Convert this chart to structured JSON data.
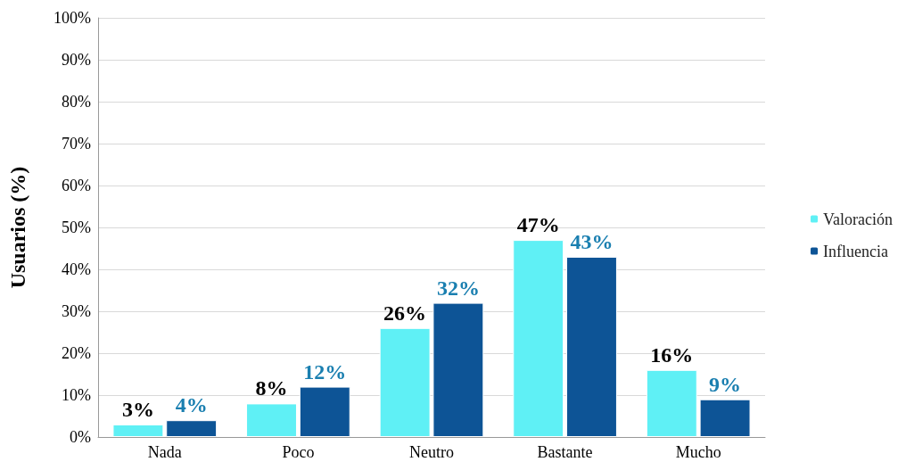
{
  "chart_data": {
    "type": "bar",
    "ylabel": "Usuarios (%)",
    "categories": [
      "Nada",
      "Poco",
      "Neutro",
      "Bastante",
      "Mucho"
    ],
    "series": [
      {
        "name": "Valoración",
        "color": "#5ff0f5",
        "values": [
          3,
          8,
          26,
          47,
          16
        ],
        "value_labels": [
          "3%",
          "8%",
          "26%",
          "47%",
          "16%"
        ]
      },
      {
        "name": "Influencia",
        "color": "#0d5496",
        "values": [
          4,
          12,
          32,
          43,
          9
        ],
        "value_labels": [
          "4%",
          "12%",
          "32%",
          "43%",
          "9%"
        ]
      }
    ],
    "ylim": [
      0,
      100
    ],
    "yticks": [
      {
        "value": 0,
        "label": "0%"
      },
      {
        "value": 10,
        "label": "10%"
      },
      {
        "value": 20,
        "label": "20%"
      },
      {
        "value": 30,
        "label": "30%"
      },
      {
        "value": 40,
        "label": "40%"
      },
      {
        "value": 50,
        "label": "50%"
      },
      {
        "value": 60,
        "label": "60%"
      },
      {
        "value": 70,
        "label": "70%"
      },
      {
        "value": 80,
        "label": "80%"
      },
      {
        "value": 90,
        "label": "90%"
      },
      {
        "value": 100,
        "label": "100%"
      }
    ],
    "grid": "y",
    "legend": "right"
  }
}
